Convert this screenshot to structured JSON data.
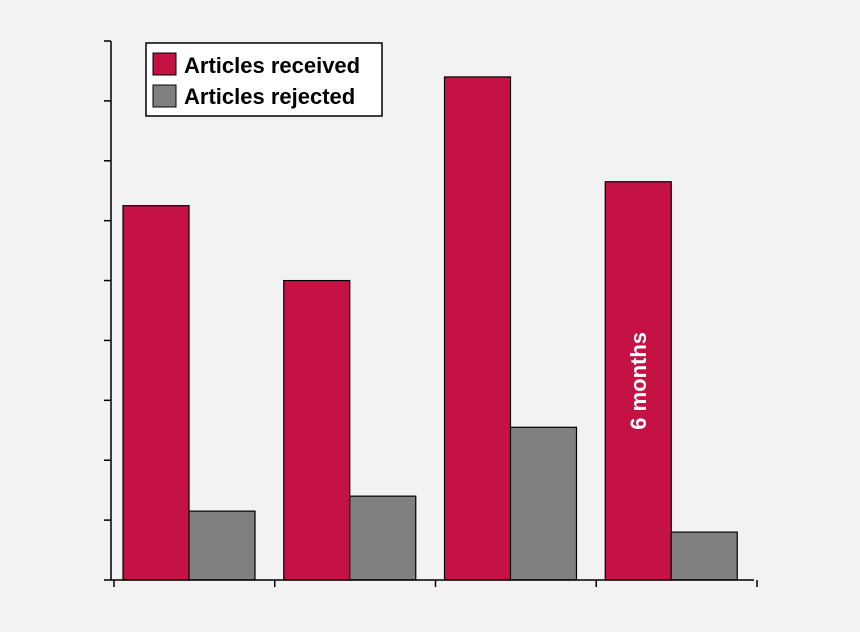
{
  "chart_data": {
    "type": "bar",
    "categories": [
      "",
      "",
      "",
      ""
    ],
    "ylim": [
      0,
      9
    ],
    "grid": false,
    "legend_position": "top-left",
    "series": [
      {
        "name": "Articles received",
        "color": "#c41244",
        "values": [
          6.25,
          5.0,
          8.4,
          6.65
        ]
      },
      {
        "name": "Articles rejected",
        "color": "#808080",
        "values": [
          1.15,
          1.4,
          2.55,
          0.8
        ]
      }
    ],
    "annotations": [
      {
        "text": "6 months",
        "category_index": 3,
        "series_index": 0,
        "color": "#ffffff"
      }
    ]
  }
}
